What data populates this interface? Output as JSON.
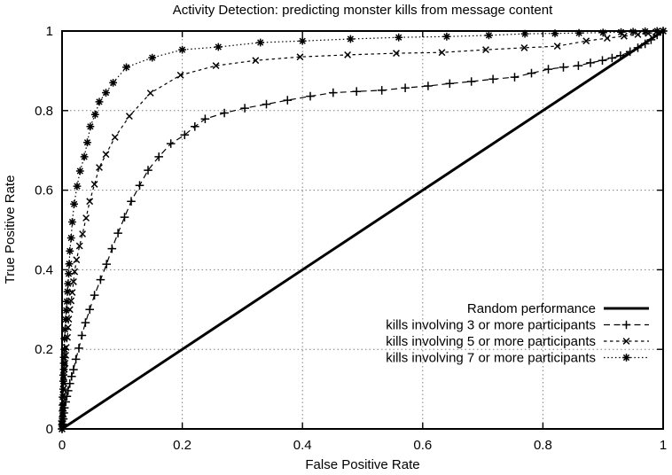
{
  "colors": {
    "foreground": "#000000",
    "background": "#ffffff",
    "grid": "#7f7f7f"
  },
  "chart_data": {
    "type": "line",
    "title": "Activity Detection: predicting monster kills from message content",
    "xlabel": "False Positive Rate",
    "ylabel": "True Positive Rate",
    "xlim": [
      0,
      1
    ],
    "ylim": [
      0,
      1
    ],
    "xticks": [
      0,
      0.2,
      0.4,
      0.6,
      0.8,
      1
    ],
    "yticks": [
      0,
      0.2,
      0.4,
      0.6,
      0.8,
      1
    ],
    "grid": true,
    "legend_position": "inside-bottom-right",
    "series": [
      {
        "name": "Random performance",
        "style": "solid",
        "marker": "none",
        "width": 3,
        "points": [
          [
            0,
            0
          ],
          [
            1,
            1
          ]
        ]
      },
      {
        "name": "kills involving 3 or more participants",
        "style": "dashed-long",
        "marker": "plus",
        "width": 1.2,
        "points": [
          [
            0,
            0
          ],
          [
            0.001,
            0.012
          ],
          [
            0.002,
            0.025
          ],
          [
            0.003,
            0.04
          ],
          [
            0.004,
            0.053
          ],
          [
            0.006,
            0.068
          ],
          [
            0.008,
            0.082
          ],
          [
            0.01,
            0.096
          ],
          [
            0.013,
            0.114
          ],
          [
            0.016,
            0.132
          ],
          [
            0.019,
            0.149
          ],
          [
            0.023,
            0.175
          ],
          [
            0.028,
            0.203
          ],
          [
            0.033,
            0.235
          ],
          [
            0.039,
            0.267
          ],
          [
            0.046,
            0.3
          ],
          [
            0.054,
            0.336
          ],
          [
            0.064,
            0.375
          ],
          [
            0.074,
            0.414
          ],
          [
            0.083,
            0.453
          ],
          [
            0.093,
            0.492
          ],
          [
            0.104,
            0.532
          ],
          [
            0.115,
            0.572
          ],
          [
            0.129,
            0.612
          ],
          [
            0.143,
            0.65
          ],
          [
            0.161,
            0.684
          ],
          [
            0.181,
            0.717
          ],
          [
            0.204,
            0.739
          ],
          [
            0.221,
            0.76
          ],
          [
            0.238,
            0.779
          ],
          [
            0.27,
            0.794
          ],
          [
            0.304,
            0.806
          ],
          [
            0.34,
            0.816
          ],
          [
            0.375,
            0.826
          ],
          [
            0.413,
            0.836
          ],
          [
            0.451,
            0.845
          ],
          [
            0.49,
            0.848
          ],
          [
            0.532,
            0.851
          ],
          [
            0.571,
            0.857
          ],
          [
            0.609,
            0.862
          ],
          [
            0.645,
            0.868
          ],
          [
            0.681,
            0.873
          ],
          [
            0.717,
            0.879
          ],
          [
            0.753,
            0.884
          ],
          [
            0.781,
            0.894
          ],
          [
            0.809,
            0.904
          ],
          [
            0.834,
            0.909
          ],
          [
            0.859,
            0.913
          ],
          [
            0.879,
            0.92
          ],
          [
            0.899,
            0.926
          ],
          [
            0.915,
            0.932
          ],
          [
            0.929,
            0.938
          ],
          [
            0.945,
            0.948
          ],
          [
            0.958,
            0.958
          ],
          [
            0.97,
            0.968
          ],
          [
            0.98,
            0.978
          ],
          [
            0.99,
            0.99
          ],
          [
            1,
            1
          ]
        ]
      },
      {
        "name": "kills involving 5 or more participants",
        "style": "dashed-short",
        "marker": "cross",
        "width": 1.2,
        "points": [
          [
            0,
            0
          ],
          [
            0,
            0.012
          ],
          [
            0.001,
            0.025
          ],
          [
            0.001,
            0.04
          ],
          [
            0.001,
            0.055
          ],
          [
            0.002,
            0.07
          ],
          [
            0.002,
            0.085
          ],
          [
            0.002,
            0.1
          ],
          [
            0.003,
            0.115
          ],
          [
            0.003,
            0.13
          ],
          [
            0.004,
            0.15
          ],
          [
            0.005,
            0.165
          ],
          [
            0.006,
            0.185
          ],
          [
            0.007,
            0.205
          ],
          [
            0.009,
            0.23
          ],
          [
            0.01,
            0.255
          ],
          [
            0.011,
            0.276
          ],
          [
            0.013,
            0.3
          ],
          [
            0.015,
            0.322
          ],
          [
            0.017,
            0.343
          ],
          [
            0.019,
            0.37
          ],
          [
            0.021,
            0.395
          ],
          [
            0.024,
            0.425
          ],
          [
            0.029,
            0.46
          ],
          [
            0.034,
            0.49
          ],
          [
            0.04,
            0.53
          ],
          [
            0.046,
            0.572
          ],
          [
            0.054,
            0.615
          ],
          [
            0.062,
            0.657
          ],
          [
            0.073,
            0.69
          ],
          [
            0.088,
            0.733
          ],
          [
            0.112,
            0.786
          ],
          [
            0.147,
            0.844
          ],
          [
            0.197,
            0.889
          ],
          [
            0.256,
            0.913
          ],
          [
            0.322,
            0.926
          ],
          [
            0.396,
            0.935
          ],
          [
            0.475,
            0.94
          ],
          [
            0.556,
            0.944
          ],
          [
            0.632,
            0.946
          ],
          [
            0.705,
            0.953
          ],
          [
            0.769,
            0.958
          ],
          [
            0.824,
            0.962
          ],
          [
            0.872,
            0.975
          ],
          [
            0.907,
            0.982
          ],
          [
            0.935,
            0.987
          ],
          [
            0.958,
            0.991
          ],
          [
            0.975,
            0.994
          ],
          [
            0.988,
            0.997
          ],
          [
            1,
            1
          ]
        ]
      },
      {
        "name": "kills involving 7 or more participants",
        "style": "dotted",
        "marker": "asterisk",
        "width": 1.2,
        "points": [
          [
            0,
            0
          ],
          [
            0,
            0.01
          ],
          [
            0,
            0.02
          ],
          [
            0.001,
            0.03
          ],
          [
            0.001,
            0.045
          ],
          [
            0.001,
            0.06
          ],
          [
            0.001,
            0.08
          ],
          [
            0.002,
            0.1
          ],
          [
            0.002,
            0.12
          ],
          [
            0.002,
            0.135
          ],
          [
            0.003,
            0.15
          ],
          [
            0.003,
            0.165
          ],
          [
            0.003,
            0.18
          ],
          [
            0.004,
            0.2
          ],
          [
            0.004,
            0.227
          ],
          [
            0.005,
            0.25
          ],
          [
            0.006,
            0.275
          ],
          [
            0.007,
            0.298
          ],
          [
            0.008,
            0.32
          ],
          [
            0.009,
            0.345
          ],
          [
            0.01,
            0.365
          ],
          [
            0.011,
            0.39
          ],
          [
            0.012,
            0.415
          ],
          [
            0.013,
            0.447
          ],
          [
            0.015,
            0.48
          ],
          [
            0.017,
            0.52
          ],
          [
            0.02,
            0.565
          ],
          [
            0.025,
            0.61
          ],
          [
            0.03,
            0.648
          ],
          [
            0.037,
            0.684
          ],
          [
            0.042,
            0.72
          ],
          [
            0.047,
            0.76
          ],
          [
            0.055,
            0.79
          ],
          [
            0.062,
            0.822
          ],
          [
            0.073,
            0.845
          ],
          [
            0.085,
            0.87
          ],
          [
            0.107,
            0.909
          ],
          [
            0.15,
            0.933
          ],
          [
            0.2,
            0.953
          ],
          [
            0.26,
            0.96
          ],
          [
            0.33,
            0.971
          ],
          [
            0.4,
            0.975
          ],
          [
            0.48,
            0.98
          ],
          [
            0.56,
            0.984
          ],
          [
            0.64,
            0.986
          ],
          [
            0.71,
            0.989
          ],
          [
            0.77,
            0.993
          ],
          [
            0.82,
            0.994
          ],
          [
            0.86,
            0.995
          ],
          [
            0.9,
            0.996
          ],
          [
            0.93,
            0.997
          ],
          [
            0.95,
            0.998
          ],
          [
            0.97,
            0.999
          ],
          [
            0.99,
            1
          ],
          [
            1,
            1
          ]
        ]
      }
    ]
  }
}
